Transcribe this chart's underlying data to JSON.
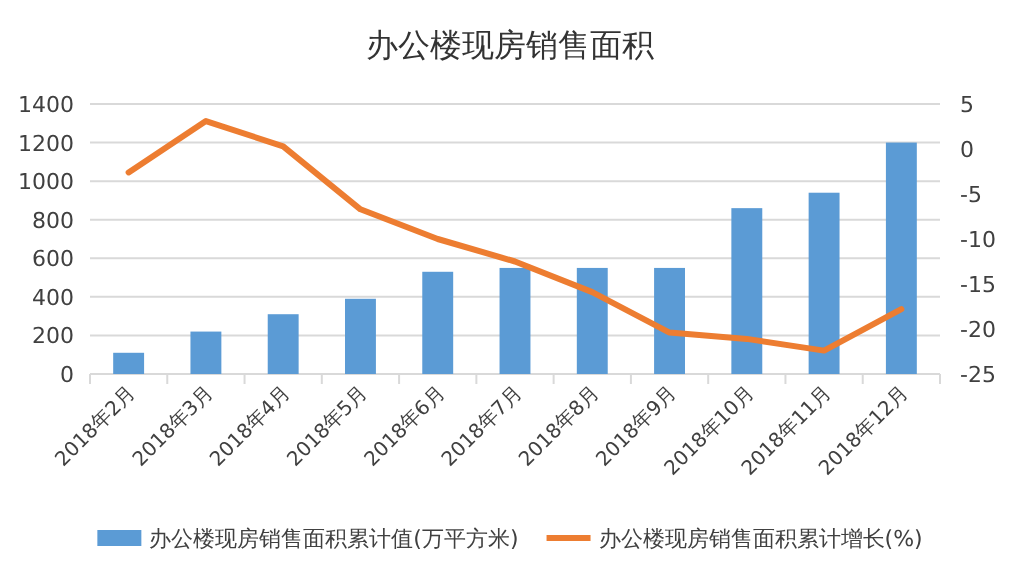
{
  "chart_data": {
    "type": "bar",
    "title": "办公楼现房销售面积",
    "categories": [
      "2018年2月",
      "2018年3月",
      "2018年4月",
      "2018年5月",
      "2018年6月",
      "2018年7月",
      "2018年8月",
      "2018年9月",
      "2018年10月",
      "2018年11月",
      "2018年12月"
    ],
    "series": [
      {
        "name": "办公楼现房销售面积累计值(万平方米)",
        "color": "#5b9bd5",
        "values": [
          110,
          220,
          310,
          390,
          530,
          550,
          550,
          550,
          860,
          940,
          1200
        ]
      },
      {
        "name": "办公楼现房销售面积累计增长(%)",
        "type": "line",
        "axis": "y2",
        "color": "#ed7d31",
        "values": [
          -2.6,
          3.1,
          0.3,
          -6.7,
          -10,
          -12.5,
          -15.9,
          -20.4,
          -21.1,
          -22.4,
          -17.8
        ]
      }
    ],
    "ylim": [
      0,
      1400
    ],
    "yticks": [
      0,
      200,
      400,
      600,
      800,
      1000,
      1200,
      1400
    ],
    "y2lim": [
      -25,
      5
    ],
    "y2ticks": [
      -25,
      -20,
      -15,
      -10,
      -5,
      0,
      5
    ],
    "grid": "y",
    "legend": "bottom",
    "marker": "none",
    "line_style": "solid"
  }
}
